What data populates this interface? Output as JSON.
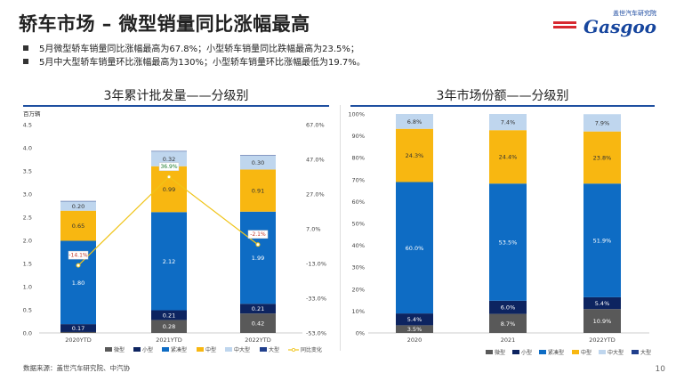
{
  "page": {
    "title": "轿车市场 – 微型销量同比涨幅最高",
    "logo_top": "盖世汽车研究院",
    "logo_brand": "Gasgoo",
    "bullets": [
      "5月微型轿车销量同比涨幅最高为67.8%；小型轿车销量同比跌幅最高为23.5%；",
      "5月中大型轿车销量环比涨幅最高为130%；小型轿车销量环比涨幅最低为19.7%。"
    ],
    "source": "数据来源：盖世汽车研究院、中汽协",
    "page_number": "10"
  },
  "colors": {
    "微型": "#595959",
    "小型": "#0d2460",
    "紧凑型": "#0e6cc4",
    "中型": "#f8b711",
    "中大型": "#bfd6ee",
    "大型": "#203f8c",
    "同比变化": "#f0c419",
    "accent_line": "#1e4fa0"
  },
  "chart_data": [
    {
      "type": "bar",
      "stacked": true,
      "title": "3年累计批发量——分级别",
      "ylabel": "百万辆",
      "categories": [
        "2020YTD",
        "2021YTD",
        "2022YTD"
      ],
      "ylim": [
        0,
        4.5
      ],
      "yticks": [
        "0.0",
        "0.5",
        "1.0",
        "1.5",
        "2.0",
        "2.5",
        "3.0",
        "3.5",
        "4.0",
        "4.5"
      ],
      "y2ticks": [
        "-53.0%",
        "-33.0%",
        "-13.0%",
        "7.0%",
        "27.0%",
        "47.0%",
        "67.0%"
      ],
      "y2lim": [
        -53,
        67
      ],
      "series": [
        {
          "name": "微型",
          "values": [
            0.02,
            0.28,
            0.42
          ],
          "labels": [
            "",
            "0.28",
            "0.42"
          ]
        },
        {
          "name": "小型",
          "values": [
            0.17,
            0.21,
            0.21
          ],
          "labels": [
            "0.17",
            "0.21",
            "0.21"
          ]
        },
        {
          "name": "紧凑型",
          "values": [
            1.8,
            2.12,
            1.99
          ],
          "labels": [
            "1.80",
            "2.12",
            "1.99"
          ]
        },
        {
          "name": "中型",
          "values": [
            0.65,
            0.99,
            0.91
          ],
          "labels": [
            "0.65",
            "0.99",
            "0.91"
          ]
        },
        {
          "name": "中大型",
          "values": [
            0.2,
            0.32,
            0.3
          ],
          "labels": [
            "0.20",
            "0.32",
            "0.30"
          ]
        },
        {
          "name": "大型",
          "values": [
            0.01,
            0.01,
            0.01
          ],
          "labels": [
            "",
            "",
            ""
          ]
        }
      ],
      "line": {
        "name": "同比变化",
        "values": [
          -14.1,
          36.9,
          -2.1
        ],
        "labels": [
          "-14.1%",
          "36.9%",
          "-2.1%"
        ]
      },
      "legend": [
        "微型",
        "小型",
        "紧凑型",
        "中型",
        "中大型",
        "大型",
        "同比变化"
      ],
      "legend_position": "bottom"
    },
    {
      "type": "bar",
      "stacked": true,
      "title": "3年市场份额——分级别",
      "categories": [
        "2020",
        "2021",
        "2022YTD"
      ],
      "ylim": [
        0,
        100
      ],
      "yticks": [
        "0%",
        "10%",
        "20%",
        "30%",
        "40%",
        "50%",
        "60%",
        "70%",
        "80%",
        "90%",
        "100%"
      ],
      "series": [
        {
          "name": "微型",
          "values": [
            3.5,
            8.7,
            10.9
          ],
          "labels": [
            "3.5%",
            "8.7%",
            "10.9%"
          ]
        },
        {
          "name": "小型",
          "values": [
            5.4,
            6.0,
            5.4
          ],
          "labels": [
            "5.4%",
            "6.0%",
            "5.4%"
          ]
        },
        {
          "name": "紧凑型",
          "values": [
            60.0,
            53.5,
            51.9
          ],
          "labels": [
            "60.0%",
            "53.5%",
            "51.9%"
          ]
        },
        {
          "name": "中型",
          "values": [
            24.3,
            24.4,
            23.8
          ],
          "labels": [
            "24.3%",
            "24.4%",
            "23.8%"
          ]
        },
        {
          "name": "中大型",
          "values": [
            6.8,
            7.4,
            7.9
          ],
          "labels": [
            "6.8%",
            "7.4%",
            "7.9%"
          ]
        },
        {
          "name": "大型",
          "values": [
            0,
            0,
            0
          ],
          "labels": [
            "",
            "",
            ""
          ]
        }
      ],
      "legend": [
        "微型",
        "小型",
        "紧凑型",
        "中型",
        "中大型",
        "大型"
      ],
      "legend_position": "bottom"
    }
  ]
}
